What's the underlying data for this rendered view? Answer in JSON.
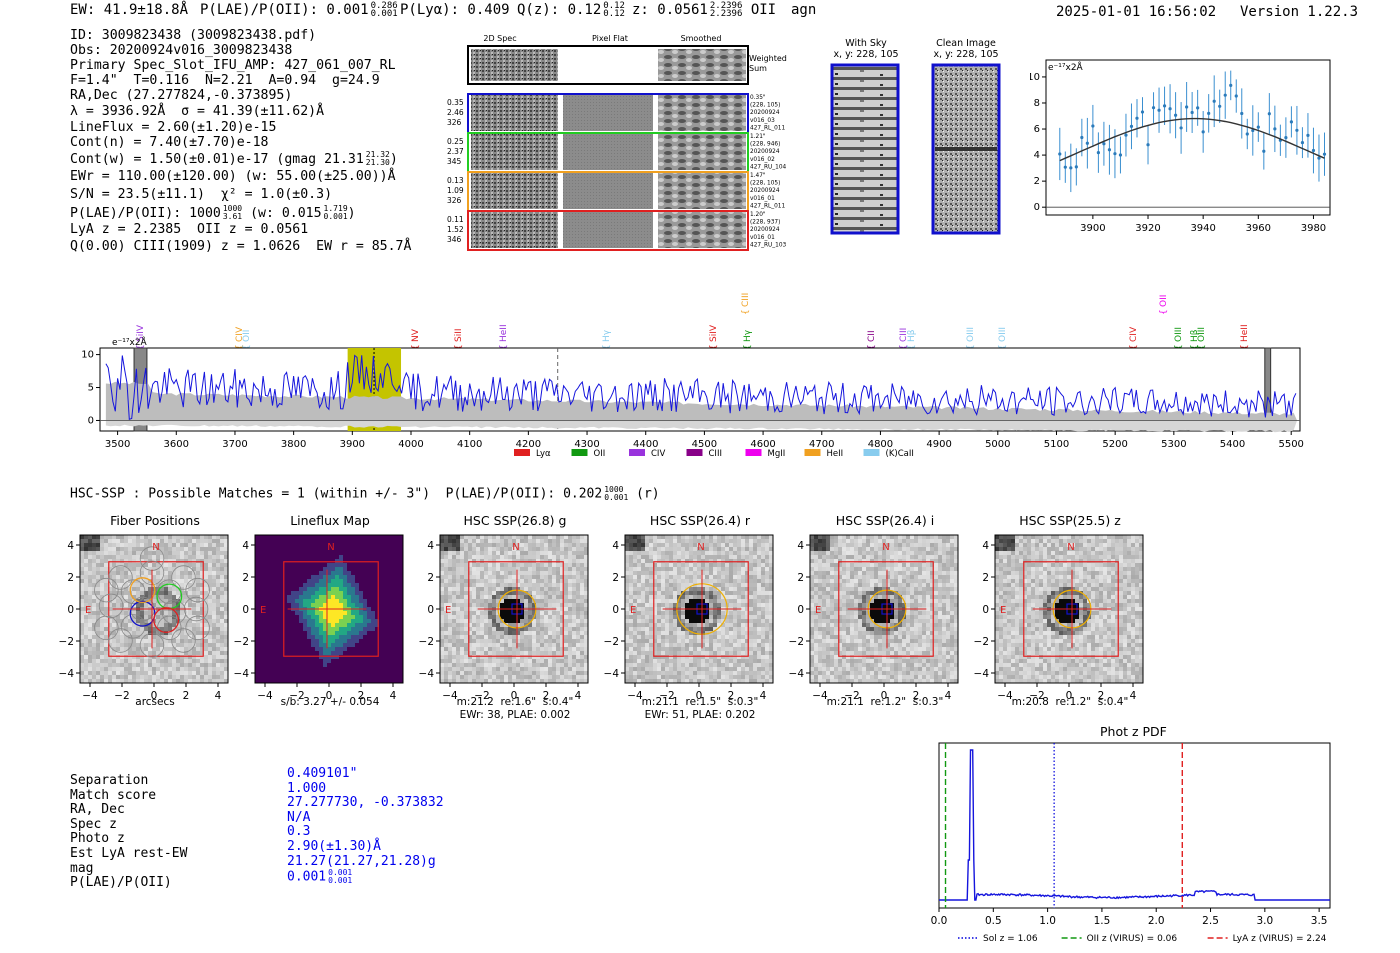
{
  "header": {
    "ew": "EW: 41.9±18.8Å",
    "plae_label": "P(LAE)/P(OII): 0.001",
    "plae_hi": "0.286",
    "plae_lo": "0.001",
    "plya": "P(Lyα): 0.409",
    "qz_label": "Q(z): 0.12",
    "qz_hi": "0.12",
    "qz_lo": "0.12",
    "z_label": "z: 0.0561",
    "z_hi": "2.2396",
    "z_lo": "2.2396",
    "z_line": "OII",
    "agn": "agn",
    "timestamp": "2025-01-01 16:56:02",
    "version": "Version 1.22.3"
  },
  "info": {
    "id": "ID: 3009823438 (3009823438.pdf)",
    "obs": "Obs: 20200924v016_3009823438",
    "primary": "Primary Spec_Slot_IFU_AMP: 427_061_007_RL",
    "f_line": "F=1.4\"  T=0.116  N=2.21  A=0.94  g=24.9",
    "radec": "RA,Dec (27.277824,-0.373895)",
    "lambda": "λ = 3936.92Å  σ = 41.39(±11.62)Å",
    "lineflux": "LineFlux = 2.60(±1.20)e-15",
    "contn": "Cont(n) = 7.40(±7.70)e-18",
    "contw": "Cont(w) = 1.50(±0.01)e-17 (gmag 21.31",
    "contw_hi": "21.32",
    "contw_lo": "21.30",
    "contw_end": ")",
    "ewr": "EWr = 110.00(±120.00) (w: 55.00(±25.00))Å",
    "sn": "S/N = 23.5(±11.1)  χ² = 1.0(±0.3)",
    "plae2": "P(LAE)/P(OII): 1000",
    "plae2_hi": "1000",
    "plae2_lo": "3.61",
    "plae2_mid": "(w: 0.015",
    "plae2_w_hi": "1.719",
    "plae2_w_lo": "0.001",
    "plae2_end": ")",
    "lya_z": "LyA z = 2.2385  OII z = 0.0561",
    "qline": "Q(0.00) CIII(1909) z = 1.0626  EW r = 85.7Å"
  },
  "cutouts": {
    "col_2d": "2D Spec",
    "col_flat": "Pixel Flat",
    "col_smooth": "Smoothed",
    "weighted": "Weighted",
    "sum": "Sum",
    "rows": [
      {
        "a": "0.35",
        "b": "2.46",
        "c": "326",
        "info": [
          "0.35\"",
          "(228, 105)",
          "20200924",
          "v016_03",
          "427_RL_011"
        ],
        "color": "#1010cc"
      },
      {
        "a": "0.25",
        "b": "2.37",
        "c": "345",
        "info": [
          "1.21\"",
          "(228, 946)",
          "20200924",
          "v016_02",
          "427_RU_104"
        ],
        "color": "#22cc22"
      },
      {
        "a": "0.13",
        "b": "1.09",
        "c": "326",
        "info": [
          "1.47\"",
          "(228, 105)",
          "20200924",
          "v016_01",
          "427_RL_011"
        ],
        "color": "#f0a020"
      },
      {
        "a": "0.11",
        "b": "1.52",
        "c": "346",
        "info": [
          "1.20\"",
          "(228, 937)",
          "20200924",
          "v016_01",
          "427_RU_103"
        ],
        "color": "#e02020"
      }
    ],
    "with_sky": "With Sky",
    "with_sky_xy": "x, y: 228, 105",
    "clean": "Clean Image",
    "clean_xy": "x, y: 228, 105"
  },
  "zoom_plot": {
    "unit": "e⁻¹⁷x2Å",
    "xticks": [
      "3900",
      "3920",
      "3940",
      "3960",
      "3980"
    ],
    "yticks": [
      "10",
      "8",
      "6",
      "4",
      "2",
      "0"
    ]
  },
  "spectrum": {
    "unit": "e⁻¹⁷x2Å",
    "yticks": [
      "10",
      "5",
      "0"
    ],
    "xticks": [
      "3500",
      "3600",
      "3700",
      "3800",
      "3900",
      "4000",
      "4100",
      "4200",
      "4300",
      "4400",
      "4500",
      "4600",
      "4700",
      "4800",
      "4900",
      "5000",
      "5100",
      "5200",
      "5300",
      "5400",
      "5500"
    ],
    "lines": [
      {
        "t": "SiIV",
        "c": "#9933dd"
      },
      {
        "t": "CIV",
        "c": "#f0a020"
      },
      {
        "t": "OII",
        "c": "#88ccee"
      },
      {
        "t": "NV",
        "c": "#e02020"
      },
      {
        "t": "SiII",
        "c": "#e02020"
      },
      {
        "t": "HeII",
        "c": "#9933dd"
      },
      {
        "t": "Hγ",
        "c": "#88ccee"
      },
      {
        "t": "SiIV",
        "c": "#e02020"
      },
      {
        "t": "CIII",
        "c": "#f0a020"
      },
      {
        "t": "Hγ",
        "c": "#119911"
      },
      {
        "t": "CII",
        "c": "#880088"
      },
      {
        "t": "CIII",
        "c": "#9933dd"
      },
      {
        "t": "Hβ",
        "c": "#88ccee"
      },
      {
        "t": "OIII",
        "c": "#88ccee"
      },
      {
        "t": "OIII",
        "c": "#88ccee"
      },
      {
        "t": "CIV",
        "c": "#e02020"
      },
      {
        "t": "Hβ",
        "c": "#119911"
      },
      {
        "t": "OII",
        "c": "#ee00ee"
      },
      {
        "t": "OIII",
        "c": "#119911"
      },
      {
        "t": "OIII",
        "c": "#119911"
      },
      {
        "t": "HeII",
        "c": "#e02020"
      }
    ],
    "legend": [
      {
        "t": "Lyα",
        "c": "#e02020"
      },
      {
        "t": "OII",
        "c": "#119911"
      },
      {
        "t": "CIV",
        "c": "#9933dd"
      },
      {
        "t": "CIII",
        "c": "#880088"
      },
      {
        "t": "MgII",
        "c": "#ee00ee"
      },
      {
        "t": "HeII",
        "c": "#f0a020"
      },
      {
        "t": "(K)CaII",
        "c": "#88ccee"
      }
    ]
  },
  "hsc": {
    "title": "HSC-SSP : Possible Matches = 1 (within +/- 3\")  P(LAE)/P(OII): 0.202",
    "title_hi": "1000",
    "title_lo": "0.001",
    "title_end": "(r)",
    "panels": [
      {
        "title": "Fiber Positions",
        "cap1": "arcsecs",
        "cap2": ""
      },
      {
        "title": "Lineflux Map",
        "cap1": "s/b: 3.27 +/- 0.054",
        "cap2": ""
      },
      {
        "title": "HSC SSP(26.8) g",
        "cap1": "m:21.2  re:1.6\"  s:0.4\"",
        "cap2": "EWr: 38, PLAE: 0.002"
      },
      {
        "title": "HSC SSP(26.4) r",
        "cap1": "m:21.1  re:1.5\"  s:0.3\"",
        "cap2": "EWr: 51, PLAE: 0.202"
      },
      {
        "title": "HSC SSP(26.4) i",
        "cap1": "m:21.1  re:1.2\"  s:0.3\"",
        "cap2": ""
      },
      {
        "title": "HSC SSP(25.5) z",
        "cap1": "m:20.8  re:1.2\"  s:0.4\"",
        "cap2": ""
      }
    ],
    "ticks": [
      "4",
      "2",
      "0",
      "−2",
      "−4"
    ],
    "xticks": [
      "−4",
      "−2",
      "0",
      "2",
      "4"
    ],
    "n": "N",
    "e": "E"
  },
  "match": {
    "labels": [
      "Separation",
      "Match score",
      "RA, Dec",
      "Spec z",
      "Photo z",
      "Est LyA rest-EW",
      "mag",
      "P(LAE)/P(OII)"
    ],
    "values": [
      "0.409101\"",
      "1.000",
      "27.277730, -0.373832",
      "N/A",
      "0.3",
      "2.90(±1.30)Å",
      "21.27(21.27,21.28)g",
      "0.001"
    ],
    "plae_hi": "0.001",
    "plae_lo": "0.001"
  },
  "photz": {
    "title": "Phot z PDF",
    "xticks": [
      "0.0",
      "0.5",
      "1.0",
      "1.5",
      "2.0",
      "2.5",
      "3.0",
      "3.5"
    ],
    "legend": [
      {
        "t": "Sol z = 1.06",
        "c": "#0000dd"
      },
      {
        "t": "OII z (VIRUS) = 0.06",
        "c": "#119911"
      },
      {
        "t": "LyA z (VIRUS) = 2.24",
        "c": "#e02020"
      }
    ]
  }
}
